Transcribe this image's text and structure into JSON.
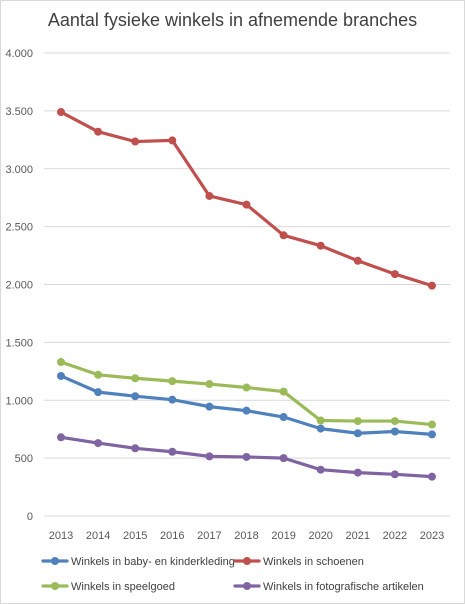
{
  "chart_data": {
    "type": "line",
    "title": "Aantal fysieke winkels in afnemende branches",
    "xlabel": "",
    "ylabel": "",
    "x": [
      "2013",
      "2014",
      "2015",
      "2016",
      "2017",
      "2018",
      "2019",
      "2020",
      "2021",
      "2022",
      "2023"
    ],
    "ylim": [
      0,
      4000
    ],
    "yticks": [
      0,
      500,
      1000,
      1500,
      2000,
      2500,
      3000,
      3500,
      4000
    ],
    "ytick_labels": [
      "0",
      "500",
      "1.000",
      "1.500",
      "2.000",
      "2.500",
      "3.000",
      "3.500",
      "4.000"
    ],
    "grid": true,
    "legend_position": "bottom",
    "series": [
      {
        "name": "Winkels in baby- en kinderkleding",
        "color": "#4f81bd",
        "values": [
          1210,
          1070,
          1035,
          1005,
          945,
          910,
          855,
          755,
          715,
          730,
          705
        ]
      },
      {
        "name": "Winkels in schoenen",
        "color": "#c0504d",
        "values": [
          3490,
          3320,
          3235,
          3245,
          2765,
          2690,
          2425,
          2335,
          2205,
          2090,
          1990
        ]
      },
      {
        "name": "Winkels in speelgoed",
        "color": "#9bbb59",
        "values": [
          1330,
          1220,
          1190,
          1165,
          1140,
          1110,
          1075,
          825,
          820,
          820,
          790
        ]
      },
      {
        "name": "Winkels in fotografische artikelen",
        "color": "#8064a2",
        "values": [
          680,
          630,
          585,
          555,
          515,
          510,
          500,
          400,
          375,
          360,
          340
        ]
      }
    ]
  }
}
